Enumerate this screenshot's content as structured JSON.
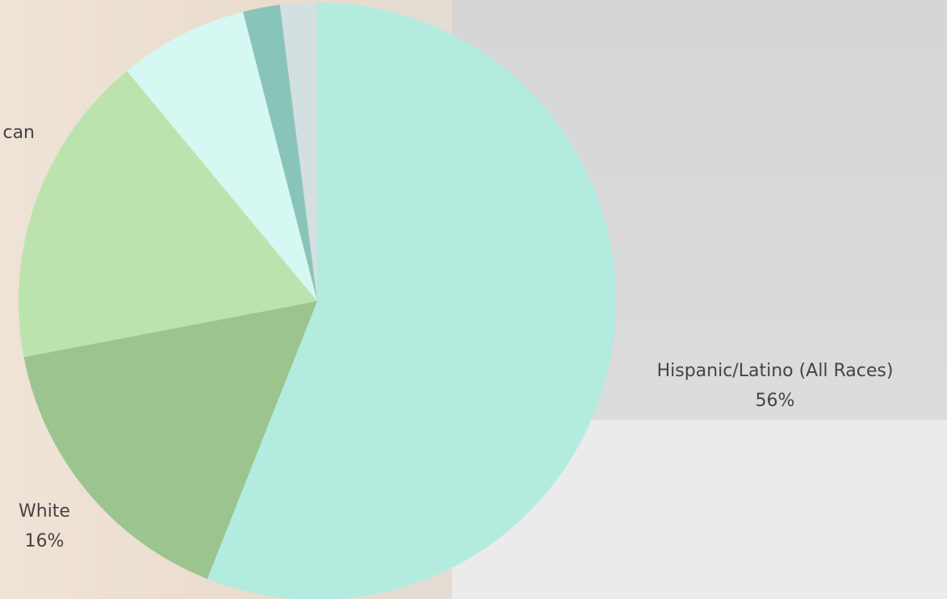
{
  "chart_data": {
    "type": "pie",
    "categories": [
      "Hispanic/Latino (All Races)",
      "White",
      "can",
      null,
      null,
      null
    ],
    "values": [
      56,
      16,
      17,
      7,
      2,
      2
    ],
    "value_labels": [
      "56%",
      "16%",
      null,
      null,
      null,
      null
    ],
    "colors": [
      "#b3ebdf",
      "#9bc48e",
      "#bce3ad",
      "#d6f8f2",
      "#88c5b8",
      "#d3dfe0"
    ]
  }
}
